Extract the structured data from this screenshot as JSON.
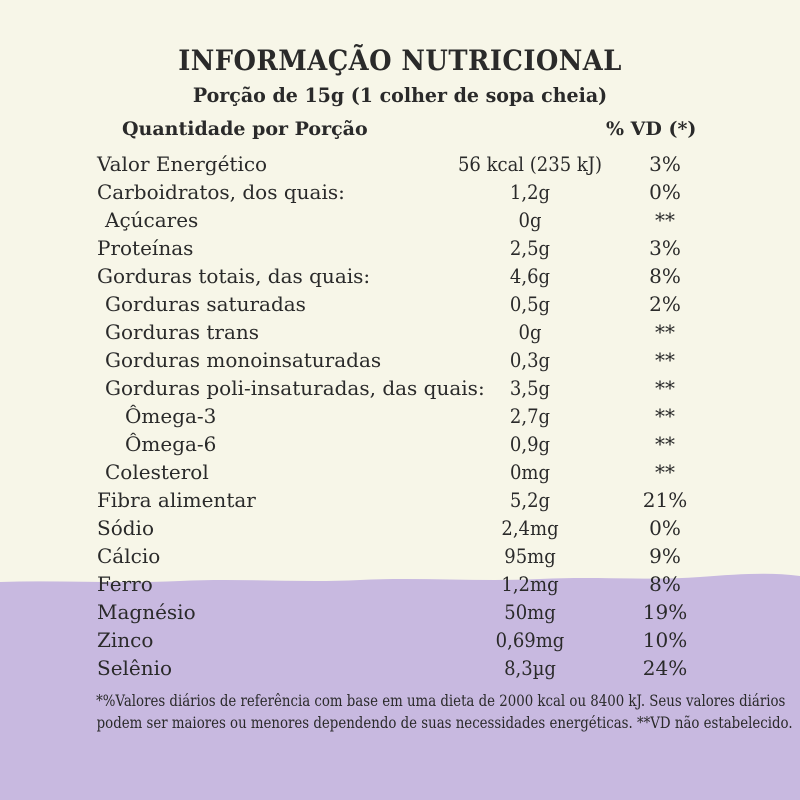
{
  "colors": {
    "background": "#f7f6e8",
    "band": "#c8b9e0",
    "text": "#2a2a2a"
  },
  "panel": {
    "title": "INFORMAÇÃO NUTRICIONAL",
    "serving": "Porção de 15g (1 colher de sopa cheia)",
    "col_quantity": "Quantidade por Porção",
    "col_vd": "% VD (*)",
    "rows": [
      {
        "name": "Valor Energético",
        "amount": "56 kcal (235 kJ)",
        "vd": "3%",
        "level": 0
      },
      {
        "name": "Carboidratos, dos quais:",
        "amount": "1,2g",
        "vd": "0%",
        "level": 0
      },
      {
        "name": "Açúcares",
        "amount": "0g",
        "vd": "**",
        "level": 1
      },
      {
        "name": "Proteínas",
        "amount": "2,5g",
        "vd": "3%",
        "level": 0
      },
      {
        "name": "Gorduras totais, das quais:",
        "amount": "4,6g",
        "vd": "8%",
        "level": 0
      },
      {
        "name": "Gorduras saturadas",
        "amount": "0,5g",
        "vd": "2%",
        "level": 1
      },
      {
        "name": "Gorduras trans",
        "amount": "0g",
        "vd": "**",
        "level": 1
      },
      {
        "name": "Gorduras monoinsaturadas",
        "amount": "0,3g",
        "vd": "**",
        "level": 1
      },
      {
        "name": "Gorduras poli-insaturadas, das quais:",
        "amount": "3,5g",
        "vd": "**",
        "level": 1
      },
      {
        "name": "Ômega-3",
        "amount": "2,7g",
        "vd": "**",
        "level": 2
      },
      {
        "name": "Ômega-6",
        "amount": "0,9g",
        "vd": "**",
        "level": 2
      },
      {
        "name": "Colesterol",
        "amount": "0mg",
        "vd": "**",
        "level": 1
      },
      {
        "name": "Fibra alimentar",
        "amount": "5,2g",
        "vd": "21%",
        "level": 0
      },
      {
        "name": "Sódio",
        "amount": "2,4mg",
        "vd": "0%",
        "level": 0
      },
      {
        "name": "Cálcio",
        "amount": "95mg",
        "vd": "9%",
        "level": 0
      },
      {
        "name": "Ferro",
        "amount": "1,2mg",
        "vd": "8%",
        "level": 0
      },
      {
        "name": "Magnésio",
        "amount": "50mg",
        "vd": "19%",
        "level": 0
      },
      {
        "name": "Zinco",
        "amount": "0,69mg",
        "vd": "10%",
        "level": 0
      },
      {
        "name": "Selênio",
        "amount": "8,3µg",
        "vd": "24%",
        "level": 0
      }
    ],
    "footnote_line1": "*%Valores diários de referência com base em uma dieta de 2000 kcal ou 8400 kJ. Seus valores diários",
    "footnote_line2": "podem ser maiores ou menores dependendo de suas necessidades energéticas. **VD não estabelecido."
  }
}
